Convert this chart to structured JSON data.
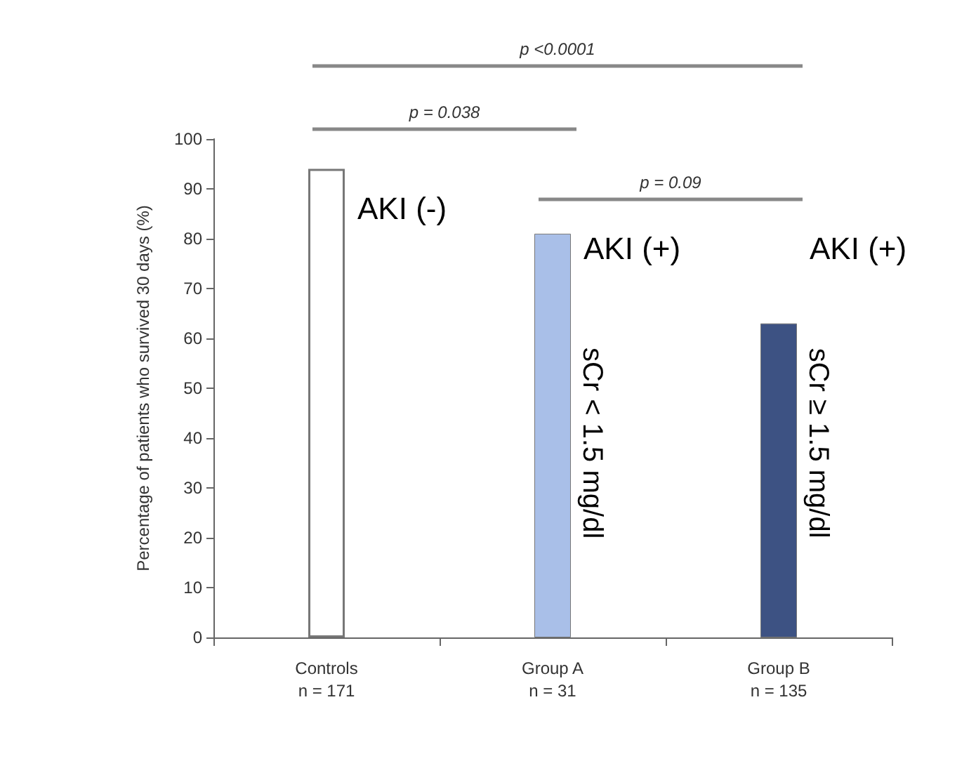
{
  "chart_data": {
    "type": "bar",
    "ylabel": "Percentage of patients who survived 30 days (%)",
    "categories": [
      "Controls\nn = 171",
      "Group A\nn = 31",
      "Group B\nn = 135"
    ],
    "values": [
      94,
      81,
      63
    ],
    "colors": [
      "#ffffff",
      "#a9bfe8",
      "#3d5283"
    ],
    "ylim": [
      0,
      100
    ],
    "yticks": [
      0,
      10,
      20,
      30,
      40,
      50,
      60,
      70,
      80,
      90,
      100
    ],
    "grid": false,
    "annotations": [
      "p <0.0001",
      "p = 0.038",
      "p = 0.09",
      "AKI (-)",
      "AKI (+)",
      "AKI (+)",
      "sCr < 1.5 mg/dl",
      "sCr ≥ 1.5 mg/dl"
    ]
  }
}
